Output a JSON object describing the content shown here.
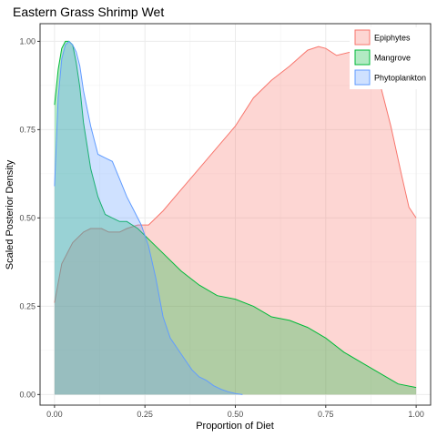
{
  "chart_data": {
    "type": "area",
    "title": "Eastern Grass Shrimp Wet",
    "xlabel": "Proportion of Diet",
    "ylabel": "Scaled Posterior Density",
    "xlim": [
      -0.04,
      1.04
    ],
    "ylim": [
      -0.03,
      1.05
    ],
    "x_ticks": [
      0.0,
      0.25,
      0.5,
      0.75,
      1.0
    ],
    "x_tick_labels": [
      "0.00",
      "0.25",
      "0.50",
      "0.75",
      "1.00"
    ],
    "y_ticks": [
      0.0,
      0.25,
      0.5,
      0.75,
      1.0
    ],
    "y_tick_labels": [
      "0.00",
      "0.25",
      "0.50",
      "0.75",
      "1.00"
    ],
    "grid": true,
    "legend_position": "top-right",
    "series": [
      {
        "name": "Epiphytes",
        "fill": "#f8766d",
        "x": [
          0.0,
          0.02,
          0.05,
          0.08,
          0.1,
          0.13,
          0.15,
          0.18,
          0.2,
          0.23,
          0.26,
          0.3,
          0.35,
          0.4,
          0.45,
          0.5,
          0.55,
          0.6,
          0.65,
          0.7,
          0.73,
          0.75,
          0.78,
          0.82,
          0.86,
          0.9,
          0.93,
          0.96,
          0.98,
          1.0
        ],
        "y": [
          0.26,
          0.37,
          0.43,
          0.46,
          0.47,
          0.47,
          0.46,
          0.46,
          0.47,
          0.48,
          0.48,
          0.52,
          0.58,
          0.64,
          0.7,
          0.76,
          0.84,
          0.89,
          0.93,
          0.975,
          0.985,
          0.98,
          0.96,
          0.97,
          0.95,
          0.88,
          0.76,
          0.62,
          0.53,
          0.5
        ]
      },
      {
        "name": "Mangrove",
        "fill": "#00ba38",
        "x": [
          0.0,
          0.01,
          0.02,
          0.03,
          0.04,
          0.05,
          0.06,
          0.07,
          0.08,
          0.1,
          0.12,
          0.14,
          0.16,
          0.18,
          0.2,
          0.23,
          0.26,
          0.3,
          0.35,
          0.4,
          0.45,
          0.5,
          0.55,
          0.6,
          0.65,
          0.7,
          0.75,
          0.8,
          0.85,
          0.9,
          0.95,
          1.0
        ],
        "y": [
          0.82,
          0.92,
          0.98,
          1.0,
          1.0,
          0.99,
          0.94,
          0.87,
          0.77,
          0.64,
          0.56,
          0.51,
          0.5,
          0.49,
          0.49,
          0.47,
          0.44,
          0.4,
          0.35,
          0.31,
          0.28,
          0.27,
          0.25,
          0.22,
          0.21,
          0.19,
          0.16,
          0.12,
          0.09,
          0.06,
          0.03,
          0.02
        ]
      },
      {
        "name": "Phytoplankton",
        "fill": "#619cff",
        "x": [
          0.0,
          0.01,
          0.02,
          0.03,
          0.04,
          0.05,
          0.06,
          0.07,
          0.08,
          0.1,
          0.12,
          0.14,
          0.16,
          0.18,
          0.2,
          0.22,
          0.24,
          0.26,
          0.28,
          0.3,
          0.32,
          0.34,
          0.36,
          0.38,
          0.4,
          0.42,
          0.44,
          0.46,
          0.48,
          0.5,
          0.52
        ],
        "y": [
          0.59,
          0.84,
          0.95,
          0.99,
          1.0,
          0.99,
          0.97,
          0.93,
          0.86,
          0.76,
          0.68,
          0.67,
          0.66,
          0.61,
          0.56,
          0.52,
          0.48,
          0.42,
          0.33,
          0.22,
          0.16,
          0.13,
          0.1,
          0.07,
          0.05,
          0.04,
          0.025,
          0.015,
          0.008,
          0.003,
          0.0
        ]
      }
    ]
  }
}
